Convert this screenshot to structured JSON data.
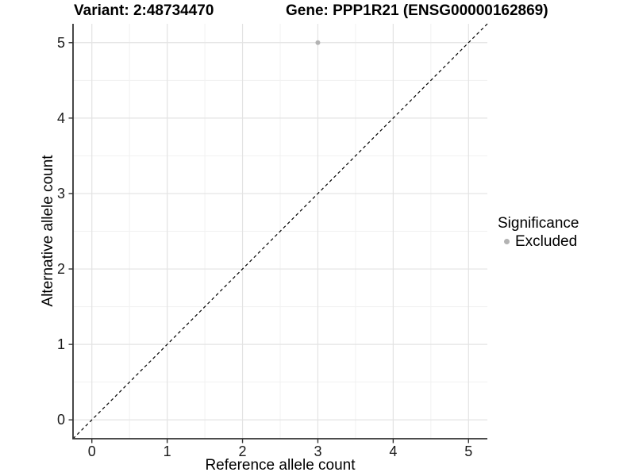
{
  "chart_data": {
    "type": "scatter",
    "titles": {
      "left": "Variant: 2:48734470",
      "right": "Gene: PPP1R21 (ENSG00000162869)"
    },
    "xlabel": "Reference allele count",
    "ylabel": "Alternative allele count",
    "xlim": [
      -0.25,
      5.25
    ],
    "ylim": [
      -0.25,
      5.25
    ],
    "xticks": [
      0,
      1,
      2,
      3,
      4,
      5
    ],
    "yticks": [
      0,
      1,
      2,
      3,
      4,
      5
    ],
    "grid": true,
    "grid_minor": true,
    "identity_line": {
      "style": "dashed",
      "color": "#000000",
      "from": [
        -0.25,
        -0.25
      ],
      "to": [
        5.25,
        5.25
      ]
    },
    "series": [
      {
        "name": "Excluded",
        "color": "#b3b3b3",
        "point_radius": 3,
        "points": [
          [
            3,
            5
          ]
        ]
      }
    ],
    "legend": {
      "title": "Significance",
      "position": "right",
      "entries": [
        {
          "label": "Excluded",
          "color": "#b3b3b3"
        }
      ]
    },
    "colors": {
      "grid_major": "#e3e3e3",
      "grid_minor": "#f1f1f1",
      "axis": "#333333",
      "tick_label": "#1a1a1a",
      "title": "#000000"
    }
  }
}
